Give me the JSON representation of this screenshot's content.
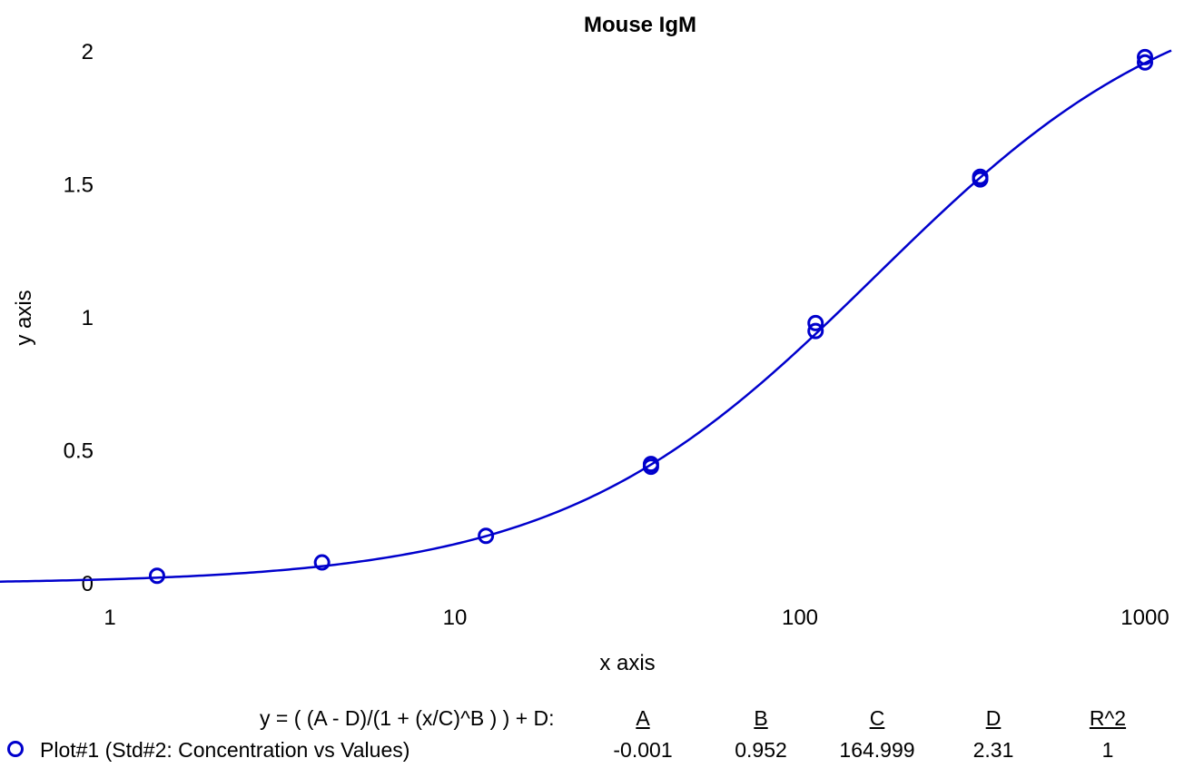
{
  "chart_data": {
    "type": "scatter",
    "title": "Mouse IgM",
    "xlabel": "x axis",
    "ylabel": "y axis",
    "xscale": "log",
    "xlim": [
      0.5,
      1200
    ],
    "ylim": [
      0,
      2
    ],
    "xticks": [
      1,
      10,
      100,
      1000
    ],
    "xtick_labels": [
      "1",
      "10",
      "100",
      "1000"
    ],
    "yticks": [
      0,
      0.5,
      1,
      1.5,
      2
    ],
    "ytick_labels": [
      "0",
      "0.5",
      "1",
      "1.5",
      "2"
    ],
    "grid": false,
    "series": [
      {
        "name": "Plot#1 (Std#2: Concentration vs Values)",
        "color": "#0000cc",
        "marker": "circle",
        "points": [
          {
            "x": 1.37,
            "y": 0.03
          },
          {
            "x": 4.12,
            "y": 0.08
          },
          {
            "x": 12.3,
            "y": 0.18
          },
          {
            "x": 37.0,
            "y": 0.45
          },
          {
            "x": 37.0,
            "y": 0.44
          },
          {
            "x": 111,
            "y": 0.98
          },
          {
            "x": 111,
            "y": 0.95
          },
          {
            "x": 333,
            "y": 1.53
          },
          {
            "x": 333,
            "y": 1.52
          },
          {
            "x": 1000,
            "y": 1.98
          },
          {
            "x": 1000,
            "y": 1.96
          }
        ]
      }
    ],
    "fit": {
      "equation": "y = ( (A - D)/(1 + (x/C)^B ) ) + D:",
      "A": -0.001,
      "B": 0.952,
      "C": 164.999,
      "D": 2.31,
      "R2": 1
    }
  },
  "legend": {
    "equation_label": "y = ( (A - D)/(1 + (x/C)^B ) ) + D:",
    "headers": [
      "A",
      "B",
      "C",
      "D",
      "R^2"
    ],
    "series_label": "Plot#1 (Std#2: Concentration vs Values)",
    "values": [
      "-0.001",
      "0.952",
      "164.999",
      "2.31",
      "1"
    ]
  }
}
